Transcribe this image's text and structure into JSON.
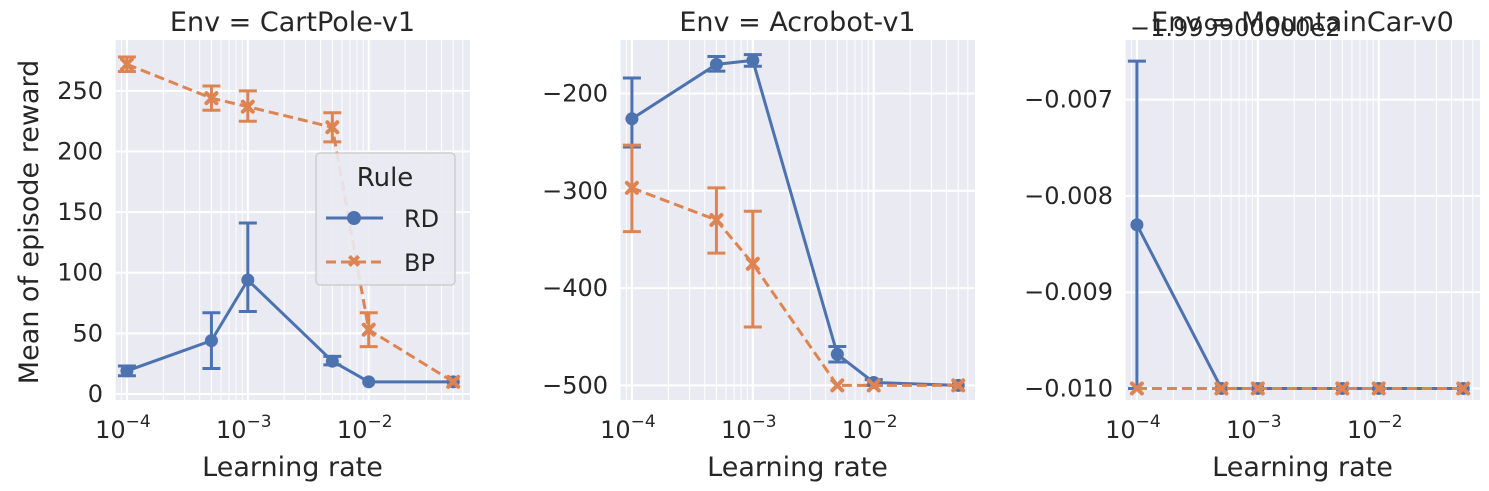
{
  "colors": {
    "RD": "#4c72b0",
    "BP": "#dd8452",
    "panel_bg": "#eaeaf2",
    "grid": "#ffffff"
  },
  "legend": {
    "title": "Rule",
    "entries": [
      "RD",
      "BP"
    ],
    "placement": "center-right of first panel"
  },
  "chart_data": [
    {
      "type": "line",
      "title": "Env = CartPole-v1",
      "xlabel": "Learning rate",
      "ylabel": "Mean of episode reward",
      "xscale": "log",
      "x": [
        0.0001,
        0.0005,
        0.001,
        0.005,
        0.01,
        0.05
      ],
      "xticks": [
        0.0001,
        0.001,
        0.01
      ],
      "xtick_labels": [
        "10",
        "10",
        "10"
      ],
      "xtick_exps": [
        "−4",
        "−3",
        "−2"
      ],
      "ylim": [
        -5,
        292
      ],
      "yticks": [
        0,
        50,
        100,
        150,
        200,
        250
      ],
      "ytick_labels": [
        "0",
        "50",
        "100",
        "150",
        "200",
        "250"
      ],
      "grid": true,
      "series": [
        {
          "name": "RD",
          "values": [
            19,
            44,
            94,
            27,
            10,
            10
          ],
          "err_low": [
            15,
            21,
            68,
            24,
            10,
            10
          ],
          "err_high": [
            23,
            67,
            141,
            31,
            10,
            10
          ]
        },
        {
          "name": "BP",
          "values": [
            272,
            244,
            237,
            220,
            53,
            10
          ],
          "err_low": [
            266,
            234,
            225,
            208,
            39,
            10
          ],
          "err_high": [
            278,
            254,
            250,
            232,
            67,
            10
          ]
        }
      ]
    },
    {
      "type": "line",
      "title": "Env = Acrobot-v1",
      "xlabel": "Learning rate",
      "xscale": "log",
      "x": [
        0.0001,
        0.0005,
        0.001,
        0.005,
        0.01,
        0.05
      ],
      "xticks": [
        0.0001,
        0.001,
        0.01
      ],
      "xtick_labels": [
        "10",
        "10",
        "10"
      ],
      "xtick_exps": [
        "−4",
        "−3",
        "−2"
      ],
      "ylim": [
        -515,
        -145
      ],
      "yticks": [
        -500,
        -400,
        -300,
        -200
      ],
      "ytick_labels": [
        "−500",
        "−400",
        "−300",
        "−200"
      ],
      "grid": true,
      "series": [
        {
          "name": "RD",
          "values": [
            -226,
            -170,
            -166,
            -468,
            -497,
            -500
          ],
          "err_low": [
            -255,
            -177,
            -172,
            -476,
            -500,
            -500
          ],
          "err_high": [
            -184,
            -162,
            -160,
            -460,
            -494,
            -500
          ]
        },
        {
          "name": "BP",
          "values": [
            -297,
            -330,
            -375,
            -500,
            -500,
            -500
          ],
          "err_low": [
            -342,
            -364,
            -440,
            -500,
            -500,
            -500
          ],
          "err_high": [
            -253,
            -297,
            -321,
            -500,
            -500,
            -500
          ]
        }
      ]
    },
    {
      "type": "line",
      "title": "Env = MountainCar-v0",
      "offset_text": "−1.999900000e2",
      "xlabel": "Learning rate",
      "xscale": "log",
      "x": [
        0.0001,
        0.0005,
        0.001,
        0.005,
        0.01,
        0.05
      ],
      "xticks": [
        0.0001,
        0.001,
        0.01
      ],
      "xtick_labels": [
        "10",
        "10",
        "10"
      ],
      "xtick_exps": [
        "−4",
        "−3",
        "−2"
      ],
      "ylim": [
        -0.01012,
        -0.00638
      ],
      "yticks": [
        -0.01,
        -0.009,
        -0.008,
        -0.007
      ],
      "ytick_labels": [
        "−0.010",
        "−0.009",
        "−0.008",
        "−0.007"
      ],
      "grid": true,
      "series": [
        {
          "name": "RD",
          "values": [
            -0.0083,
            -0.01,
            -0.01,
            -0.01,
            -0.01,
            -0.01
          ],
          "err_low": [
            -0.01,
            -0.01,
            -0.01,
            -0.01,
            -0.01,
            -0.01
          ],
          "err_high": [
            -0.0066,
            -0.01,
            -0.01,
            -0.01,
            -0.01,
            -0.01
          ]
        },
        {
          "name": "BP",
          "values": [
            -0.01,
            -0.01,
            -0.01,
            -0.01,
            -0.01,
            -0.01
          ],
          "err_low": [
            -0.01,
            -0.01,
            -0.01,
            -0.01,
            -0.01,
            -0.01
          ],
          "err_high": [
            -0.01,
            -0.01,
            -0.01,
            -0.01,
            -0.01,
            -0.01
          ]
        }
      ]
    }
  ]
}
